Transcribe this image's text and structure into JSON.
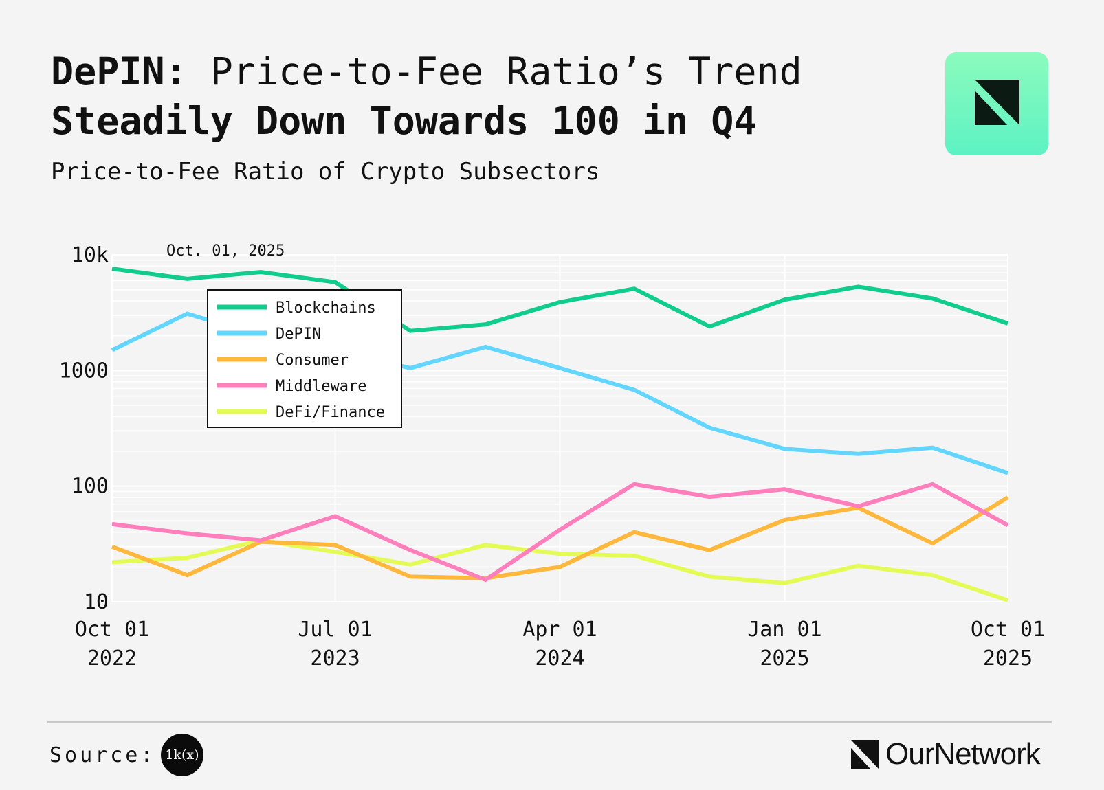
{
  "header": {
    "title_brand": "DePIN:",
    "title_rest_line1": " Price-to-Fee Ratio’s Trend",
    "title_line2": "Steadily Down Towards 100 in Q4",
    "subtitle": "Price-to-Fee Ratio of Crypto Subsectors"
  },
  "footer": {
    "source_label": "Source:",
    "source_badge": "1k(x)",
    "brand": "OurNetwork"
  },
  "colors": {
    "background": "#f4f4f4",
    "Blockchains": "#10cd8e",
    "DePIN": "#62d6ff",
    "Consumer": "#ffb83b",
    "Middleware": "#ff7fbd",
    "DeFi/Finance": "#e4fb55"
  },
  "chart_data": {
    "type": "line",
    "y_scale": "log",
    "ylim": [
      10,
      10000
    ],
    "y_ticks": [
      {
        "value": 10,
        "label": "10"
      },
      {
        "value": 100,
        "label": "100"
      },
      {
        "value": 1000,
        "label": "1000"
      },
      {
        "value": 10000,
        "label": "10k"
      }
    ],
    "x": [
      "2022-10-01",
      "2023-01-01",
      "2023-04-01",
      "2023-07-01",
      "2023-10-01",
      "2024-01-01",
      "2024-04-01",
      "2024-07-01",
      "2024-10-01",
      "2025-01-01",
      "2025-04-01",
      "2025-07-01",
      "2025-10-01"
    ],
    "x_ticks": [
      {
        "date": "2022-10-01",
        "line1": "Oct 01",
        "line2": "2022"
      },
      {
        "date": "2023-07-01",
        "line1": "Jul 01",
        "line2": "2023"
      },
      {
        "date": "2024-04-01",
        "line1": "Apr 01",
        "line2": "2024"
      },
      {
        "date": "2025-01-01",
        "line1": "Jan 01",
        "line2": "2025"
      },
      {
        "date": "2025-10-01",
        "line1": "Oct 01",
        "line2": "2025"
      }
    ],
    "annotation": "Oct. 01, 2025",
    "grid": true,
    "legend_position": "top-left",
    "series": [
      {
        "name": "Blockchains",
        "values": [
          7600,
          6200,
          7100,
          5800,
          2200,
          2500,
          3900,
          5100,
          2400,
          4100,
          5300,
          4200,
          2550
        ]
      },
      {
        "name": "DePIN",
        "values": [
          1500,
          3100,
          2000,
          1500,
          1050,
          1600,
          1050,
          680,
          320,
          210,
          190,
          215,
          130
        ]
      },
      {
        "name": "Consumer",
        "values": [
          30,
          17,
          33,
          31,
          16.5,
          16,
          20,
          40,
          28,
          51,
          65,
          32,
          80
        ]
      },
      {
        "name": "Middleware",
        "values": [
          47,
          39,
          34,
          55,
          28,
          15.5,
          42,
          104,
          81,
          94,
          67,
          104,
          46
        ]
      },
      {
        "name": "DeFi/Finance",
        "values": [
          22,
          24,
          34,
          27,
          21,
          31,
          26,
          25,
          16.5,
          14.5,
          20.5,
          17,
          10.3
        ]
      }
    ]
  }
}
